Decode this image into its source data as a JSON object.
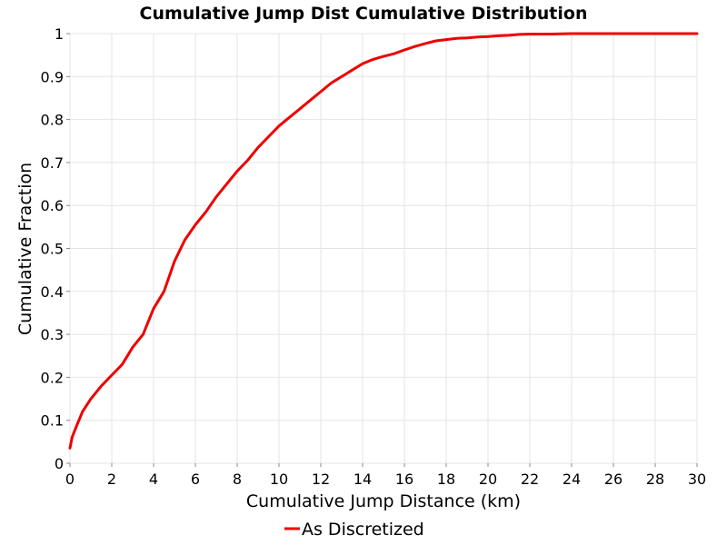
{
  "chart_data": {
    "type": "line",
    "title": "Cumulative Jump Dist Cumulative Distribution",
    "xlabel": "Cumulative Jump Distance (km)",
    "ylabel": "Cumulative Fraction",
    "xlim": [
      0,
      30
    ],
    "ylim": [
      0,
      1
    ],
    "xticks": [
      0,
      2,
      4,
      6,
      8,
      10,
      12,
      14,
      16,
      18,
      20,
      22,
      24,
      26,
      28,
      30
    ],
    "yticks": [
      0,
      0.1,
      0.2,
      0.3,
      0.4,
      0.5,
      0.6,
      0.7,
      0.8,
      0.9,
      1
    ],
    "xtick_labels": [
      "0",
      "2",
      "4",
      "6",
      "8",
      "10",
      "12",
      "14",
      "16",
      "18",
      "20",
      "22",
      "24",
      "26",
      "28",
      "30"
    ],
    "ytick_labels": [
      "0",
      "0.1",
      "0.2",
      "0.3",
      "0.4",
      "0.5",
      "0.6",
      "0.7",
      "0.8",
      "0.9",
      "1"
    ],
    "grid": true,
    "legend_position": "bottom-center",
    "series": [
      {
        "name": "As Discretized",
        "color": "#ee0000",
        "x": [
          0,
          0.1,
          0.3,
          0.6,
          1.0,
          1.5,
          2.0,
          2.5,
          3.0,
          3.5,
          4.0,
          4.5,
          5.0,
          5.5,
          6.0,
          6.5,
          7.0,
          7.5,
          8.0,
          8.5,
          9.0,
          9.5,
          10.0,
          10.5,
          11.0,
          11.5,
          12.0,
          12.5,
          13.0,
          13.5,
          14.0,
          14.5,
          15.0,
          15.5,
          16.0,
          16.5,
          17.0,
          17.5,
          18.0,
          18.5,
          19.0,
          19.5,
          20.0,
          20.5,
          21.0,
          21.5,
          22.0,
          23.0,
          24.0,
          26.0,
          28.0,
          30.0
        ],
        "y": [
          0.035,
          0.06,
          0.085,
          0.12,
          0.15,
          0.18,
          0.205,
          0.23,
          0.27,
          0.3,
          0.36,
          0.4,
          0.47,
          0.52,
          0.555,
          0.585,
          0.62,
          0.65,
          0.68,
          0.705,
          0.735,
          0.76,
          0.785,
          0.805,
          0.825,
          0.845,
          0.865,
          0.885,
          0.9,
          0.915,
          0.93,
          0.94,
          0.947,
          0.953,
          0.962,
          0.97,
          0.977,
          0.983,
          0.986,
          0.989,
          0.99,
          0.992,
          0.993,
          0.995,
          0.996,
          0.998,
          0.999,
          0.999,
          1.0,
          1.0,
          1.0,
          1.0
        ]
      }
    ]
  }
}
